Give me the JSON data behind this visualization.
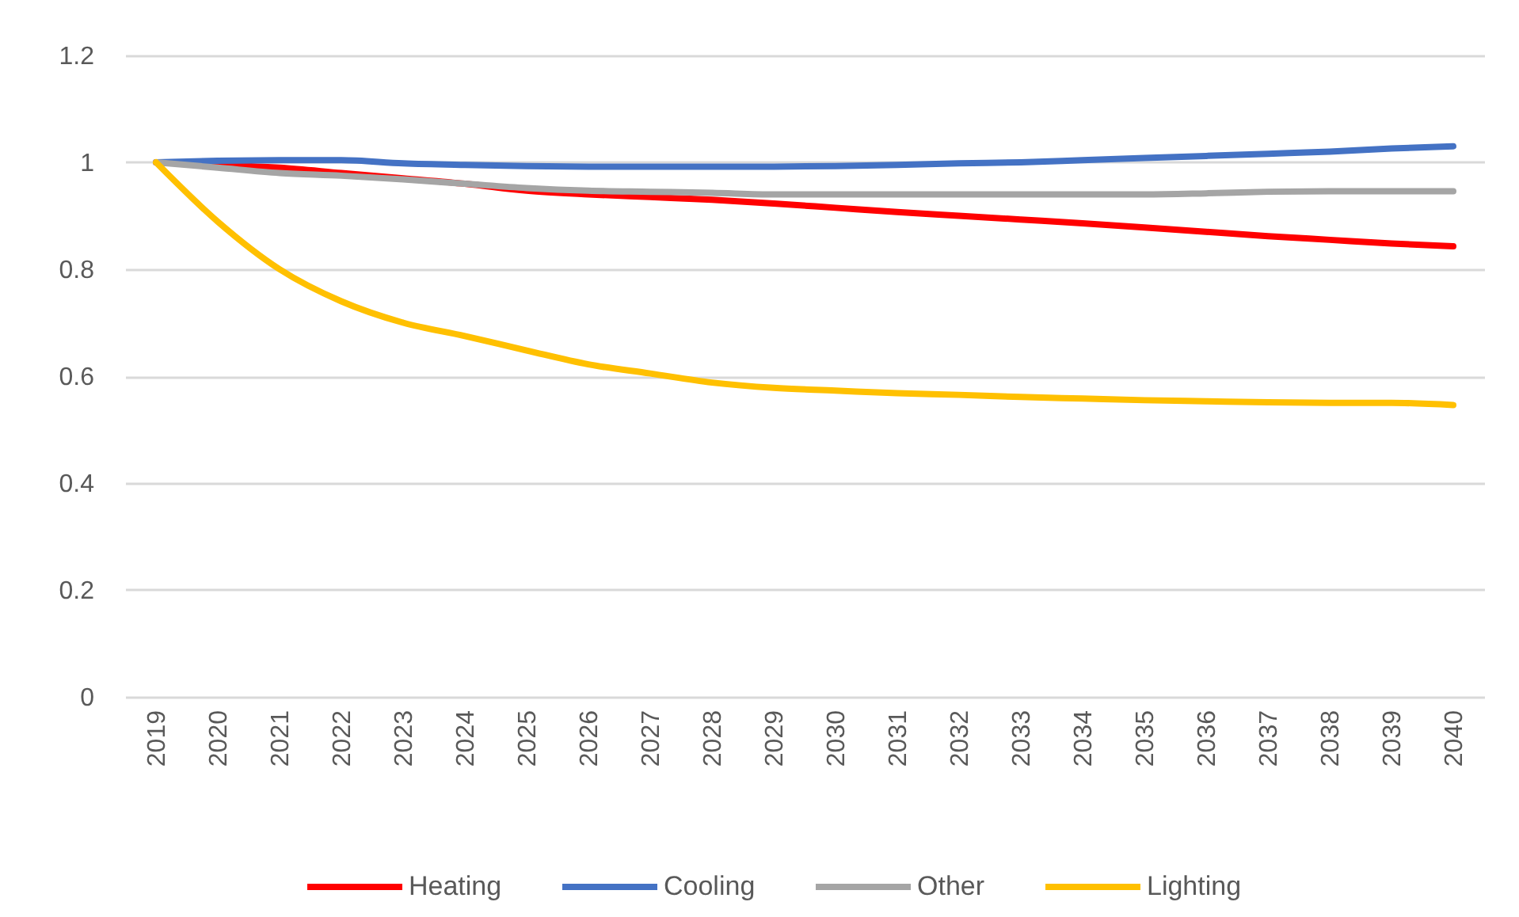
{
  "chart_data": {
    "type": "line",
    "categories": [
      "2019",
      "2020",
      "2021",
      "2022",
      "2023",
      "2024",
      "2025",
      "2026",
      "2027",
      "2028",
      "2029",
      "2030",
      "2031",
      "2032",
      "2033",
      "2034",
      "2035",
      "2036",
      "2037",
      "2038",
      "2039",
      "2040"
    ],
    "series": [
      {
        "name": "Heating",
        "color": "#ff0000",
        "values": [
          1.0,
          0.995,
          0.99,
          0.98,
          0.97,
          0.96,
          0.947,
          0.94,
          0.935,
          0.93,
          0.923,
          0.915,
          0.907,
          0.9,
          0.893,
          0.886,
          0.878,
          0.87,
          0.862,
          0.855,
          0.848,
          0.843
        ]
      },
      {
        "name": "Cooling",
        "color": "#4472c4",
        "values": [
          1.0,
          1.003,
          1.004,
          1.004,
          0.998,
          0.995,
          0.993,
          0.992,
          0.992,
          0.992,
          0.992,
          0.993,
          0.995,
          0.998,
          1.0,
          1.004,
          1.008,
          1.012,
          1.016,
          1.02,
          1.026,
          1.03
        ]
      },
      {
        "name": "Other",
        "color": "#a5a5a5",
        "values": [
          1.0,
          0.99,
          0.98,
          0.975,
          0.968,
          0.96,
          0.952,
          0.947,
          0.945,
          0.943,
          0.94,
          0.94,
          0.94,
          0.94,
          0.94,
          0.94,
          0.94,
          0.942,
          0.945,
          0.946,
          0.946,
          0.946
        ]
      },
      {
        "name": "Lighting",
        "color": "#ffc000",
        "values": [
          1.0,
          0.889,
          0.8,
          0.74,
          0.7,
          0.675,
          0.648,
          0.622,
          0.605,
          0.588,
          0.578,
          0.573,
          0.568,
          0.565,
          0.561,
          0.558,
          0.555,
          0.553,
          0.551,
          0.55,
          0.55,
          0.546
        ]
      }
    ],
    "ylim": [
      0,
      1.2
    ],
    "yticks": [
      0,
      0.2,
      0.4,
      0.6,
      0.8,
      1,
      1.2
    ],
    "grid": "y",
    "legend": "bottom",
    "marker": "none",
    "line_style": "solid"
  }
}
